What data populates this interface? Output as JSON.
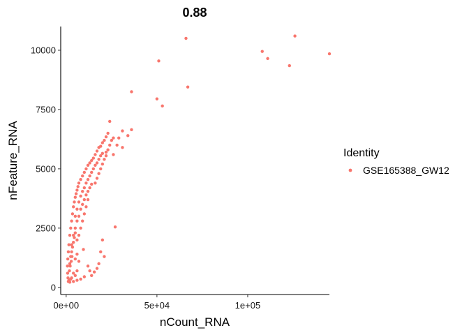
{
  "chart_data": {
    "type": "scatter",
    "title": "0.88",
    "xlabel": "nCount_RNA",
    "ylabel": "nFeature_RNA",
    "xlim": [
      -3000,
      145000
    ],
    "ylim": [
      -300,
      11000
    ],
    "x_ticks": [
      {
        "value": 0,
        "label": "0e+00"
      },
      {
        "value": 50000,
        "label": "5e+04"
      },
      {
        "value": 100000,
        "label": "1e+05"
      }
    ],
    "y_ticks": [
      {
        "value": 0,
        "label": "0"
      },
      {
        "value": 2500,
        "label": "2500"
      },
      {
        "value": 5000,
        "label": "5000"
      },
      {
        "value": 7500,
        "label": "7500"
      },
      {
        "value": 10000,
        "label": "10000"
      }
    ],
    "grid": false,
    "legend": {
      "title": "Identity",
      "position": "right",
      "entries": [
        "GSE165388_GW12"
      ]
    },
    "series": [
      {
        "name": "GSE165388_GW12",
        "color": "#F8766D",
        "points": [
          [
            66000,
            10500
          ],
          [
            126000,
            10600
          ],
          [
            108000,
            9950
          ],
          [
            111000,
            9650
          ],
          [
            123000,
            9350
          ],
          [
            145000,
            9850
          ],
          [
            51000,
            9550
          ],
          [
            67000,
            8450
          ],
          [
            36000,
            8250
          ],
          [
            50000,
            7950
          ],
          [
            53000,
            7650
          ],
          [
            24000,
            7000
          ],
          [
            31000,
            6600
          ],
          [
            36000,
            6650
          ],
          [
            29000,
            6300
          ],
          [
            34000,
            6400
          ],
          [
            28000,
            6000
          ],
          [
            31000,
            5900
          ],
          [
            22000,
            5700
          ],
          [
            26000,
            5600
          ],
          [
            27000,
            2550
          ],
          [
            20000,
            2000
          ],
          [
            19000,
            1500
          ],
          [
            21000,
            1300
          ],
          [
            9500,
            1600
          ],
          [
            18000,
            1000
          ],
          [
            17000,
            800
          ],
          [
            15500,
            650
          ],
          [
            12000,
            900
          ],
          [
            13000,
            700
          ],
          [
            14000,
            500
          ],
          [
            10000,
            450
          ],
          [
            8000,
            350
          ],
          [
            6000,
            300
          ],
          [
            4000,
            250
          ],
          [
            2000,
            220
          ],
          [
            1500,
            300
          ],
          [
            1000,
            400
          ],
          [
            800,
            600
          ],
          [
            700,
            900
          ],
          [
            900,
            1200
          ],
          [
            1200,
            1500
          ],
          [
            1500,
            1800
          ],
          [
            2000,
            2200
          ],
          [
            2500,
            2500
          ],
          [
            3000,
            2800
          ],
          [
            3500,
            3100
          ],
          [
            4000,
            3400
          ],
          [
            4500,
            3600
          ],
          [
            5000,
            3800
          ],
          [
            5500,
            3950
          ],
          [
            6000,
            4100
          ],
          [
            6500,
            4250
          ],
          [
            7000,
            4400
          ],
          [
            8000,
            4550
          ],
          [
            9000,
            4700
          ],
          [
            10000,
            4850
          ],
          [
            11000,
            5000
          ],
          [
            12000,
            5150
          ],
          [
            13000,
            5250
          ],
          [
            14000,
            5350
          ],
          [
            15000,
            5450
          ],
          [
            16000,
            5600
          ],
          [
            17000,
            5750
          ],
          [
            18000,
            5900
          ],
          [
            19000,
            5950
          ],
          [
            20000,
            6100
          ],
          [
            21000,
            6200
          ],
          [
            22000,
            6350
          ],
          [
            23000,
            6500
          ],
          [
            5000,
            3000
          ],
          [
            6000,
            3300
          ],
          [
            7000,
            3600
          ],
          [
            8000,
            3850
          ],
          [
            9000,
            4050
          ],
          [
            10000,
            4200
          ],
          [
            11000,
            4400
          ],
          [
            12000,
            4550
          ],
          [
            13000,
            4700
          ],
          [
            14000,
            4850
          ],
          [
            15000,
            5000
          ],
          [
            16000,
            5150
          ],
          [
            17000,
            5250
          ],
          [
            18000,
            5400
          ],
          [
            19000,
            5550
          ],
          [
            20000,
            5650
          ],
          [
            3000,
            1800
          ],
          [
            4000,
            2200
          ],
          [
            5000,
            2500
          ],
          [
            6000,
            2800
          ],
          [
            7000,
            3000
          ],
          [
            8000,
            3300
          ],
          [
            9000,
            3500
          ],
          [
            10000,
            3700
          ],
          [
            11000,
            3900
          ],
          [
            12000,
            4050
          ],
          [
            13000,
            4200
          ],
          [
            14000,
            4350
          ],
          [
            2000,
            1000
          ],
          [
            2500,
            1300
          ],
          [
            3000,
            1500
          ],
          [
            3500,
            1700
          ],
          [
            4000,
            1900
          ],
          [
            4500,
            2100
          ],
          [
            5000,
            2300
          ],
          [
            1800,
            700
          ],
          [
            2200,
            900
          ],
          [
            2800,
            1100
          ],
          [
            3200,
            1300
          ],
          [
            6000,
            2000
          ],
          [
            7000,
            2200
          ],
          [
            8000,
            2500
          ],
          [
            9000,
            2800
          ],
          [
            10000,
            3100
          ],
          [
            11000,
            3400
          ],
          [
            12000,
            3700
          ],
          [
            16000,
            4400
          ],
          [
            17000,
            4600
          ],
          [
            18000,
            4800
          ],
          [
            19000,
            5000
          ],
          [
            20000,
            5200
          ],
          [
            21000,
            5400
          ],
          [
            22000,
            5550
          ],
          [
            23000,
            5800
          ],
          [
            24000,
            6000
          ],
          [
            25000,
            6200
          ],
          [
            26000,
            6300
          ],
          [
            5000,
            1200
          ],
          [
            6000,
            1400
          ],
          [
            7000,
            1100
          ],
          [
            4000,
            600
          ],
          [
            5000,
            500
          ],
          [
            6000,
            700
          ],
          [
            3000,
            400
          ],
          [
            2500,
            350
          ],
          [
            1200,
            250
          ]
        ]
      }
    ]
  }
}
